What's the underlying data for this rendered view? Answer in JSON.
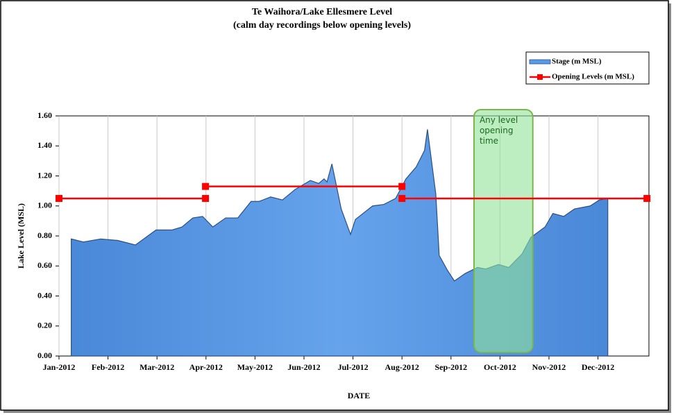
{
  "chart_data": {
    "type": "area",
    "title": "Te Waihora/Lake  Ellesmere Level",
    "subtitle": "(calm day recordings below opening levels)",
    "x_label": "DATE",
    "y_label": "Lake Level (MSL)",
    "xlim": [
      0,
      12.04
    ],
    "xticks": [
      {
        "value": 0,
        "label": "Jan-2012"
      },
      {
        "value": 1,
        "label": "Feb-2012"
      },
      {
        "value": 2,
        "label": "Mar-2012"
      },
      {
        "value": 3,
        "label": "Apr-2012"
      },
      {
        "value": 4,
        "label": "May-2012"
      },
      {
        "value": 5,
        "label": "Jun-2012"
      },
      {
        "value": 6,
        "label": "Jul-2012"
      },
      {
        "value": 7,
        "label": "Aug-2012"
      },
      {
        "value": 8,
        "label": "Sep-2012"
      },
      {
        "value": 9,
        "label": "Oct-2012"
      },
      {
        "value": 10,
        "label": "Nov-2012"
      },
      {
        "value": 11,
        "label": "Dec-2012"
      }
    ],
    "ylim": [
      0,
      1.6
    ],
    "yticks": [
      {
        "value": 0,
        "label": "0.00"
      },
      {
        "value": 0.2,
        "label": "0.20"
      },
      {
        "value": 0.4,
        "label": "0.40"
      },
      {
        "value": 0.6,
        "label": "0.60"
      },
      {
        "value": 0.8,
        "label": "0.80"
      },
      {
        "value": 1.0,
        "label": "1.00"
      },
      {
        "value": 1.2,
        "label": "1.20"
      },
      {
        "value": 1.4,
        "label": "1.40"
      },
      {
        "value": 1.6,
        "label": "1.60"
      }
    ],
    "grid": true,
    "legend": "top-right",
    "series": [
      {
        "name": "Stage (m MSL)",
        "type": "area",
        "color": "#5b9be6",
        "x": [
          0.25,
          0.5,
          0.85,
          1.2,
          1.56,
          1.98,
          2.31,
          2.51,
          2.73,
          2.93,
          3.14,
          3.4,
          3.65,
          3.92,
          4.08,
          4.32,
          4.56,
          4.82,
          5.13,
          5.3,
          5.41,
          5.47,
          5.57,
          5.76,
          5.95,
          6.05,
          6.4,
          6.63,
          6.87,
          7.08,
          7.29,
          7.46,
          7.52,
          7.69,
          7.76,
          7.93,
          8.07,
          8.29,
          8.54,
          8.71,
          8.97,
          9.18,
          9.45,
          9.63,
          9.92,
          10.08,
          10.3,
          10.52,
          10.84,
          11.03,
          11.2
        ],
        "values": [
          0.78,
          0.76,
          0.78,
          0.77,
          0.74,
          0.84,
          0.84,
          0.86,
          0.92,
          0.93,
          0.86,
          0.92,
          0.92,
          1.03,
          1.03,
          1.06,
          1.04,
          1.11,
          1.17,
          1.15,
          1.18,
          1.16,
          1.28,
          0.98,
          0.81,
          0.91,
          1.0,
          1.01,
          1.05,
          1.18,
          1.26,
          1.37,
          1.51,
          1.08,
          0.67,
          0.57,
          0.5,
          0.55,
          0.59,
          0.58,
          0.61,
          0.59,
          0.68,
          0.79,
          0.86,
          0.95,
          0.93,
          0.98,
          1.0,
          1.04,
          1.05
        ]
      },
      {
        "name": "Opening Levels (m MSL)",
        "type": "line",
        "color": "#ff0000",
        "x": [
          0,
          2.99,
          2.99,
          2.99,
          7.0,
          7.0,
          7.0,
          12.0
        ],
        "values": [
          1.05,
          1.05,
          null,
          1.13,
          1.13,
          null,
          1.05,
          1.05
        ]
      }
    ],
    "highlight": {
      "x": [
        8.47,
        9.67
      ],
      "label": "Any level opening time",
      "color": "#8fe39a"
    }
  }
}
